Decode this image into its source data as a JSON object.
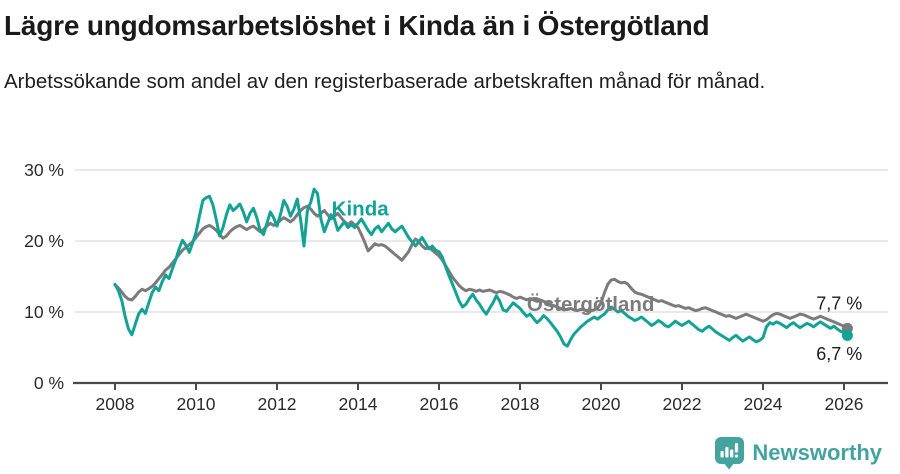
{
  "header": {
    "title": "Lägre ungdomsarbetslöshet i Kinda än i Östergötland",
    "subtitle": "Arbetssökande som andel av den registerbaserade arbetskraften månad för månad."
  },
  "chart_data": {
    "type": "line",
    "title": "Lägre ungdomsarbetslöshet i Kinda än i Östergötland",
    "subtitle": "Arbetssökande som andel av den registerbaserade arbetskraften månad för månad.",
    "x_start": {
      "year": 2008,
      "month": 1
    },
    "frequency": "monthly",
    "x_ticks": [
      "2008",
      "2010",
      "2012",
      "2014",
      "2016",
      "2018",
      "2020",
      "2022",
      "2024",
      "2026"
    ],
    "y_ticks": [
      {
        "value": 0,
        "label": "0 %"
      },
      {
        "value": 10,
        "label": "10 %"
      },
      {
        "value": 20,
        "label": "20 %"
      },
      {
        "value": 30,
        "label": "30 %"
      }
    ],
    "ylim": [
      0,
      30
    ],
    "grid": true,
    "legend_position": "inline-labels",
    "colors": {
      "kinda": "#12a296",
      "ostergotland": "#7b7b7b",
      "grid": "#e2e2e2",
      "axis": "#4a4a4a",
      "tick_text": "#2b2b2b",
      "value_text": "#1c1c1c"
    },
    "series": [
      {
        "name": "Östergötland",
        "color": "#7b7b7b",
        "end_label": "7,7 %",
        "label_pos": {
          "year": 2018.17,
          "value": 10.15
        },
        "end_label_pos": {
          "year": 2026.45,
          "value": 10.35
        },
        "values": [
          13.8,
          13.4,
          12.8,
          12.2,
          11.8,
          11.7,
          12.2,
          12.8,
          13.2,
          13.0,
          13.3,
          13.6,
          14.1,
          14.7,
          15.3,
          15.9,
          16.3,
          16.9,
          17.5,
          18.1,
          18.7,
          19.1,
          19.5,
          19.9,
          20.5,
          21.1,
          21.7,
          22.0,
          22.2,
          21.9,
          21.5,
          20.9,
          20.4,
          20.7,
          21.3,
          21.7,
          22.0,
          22.2,
          21.9,
          21.6,
          21.9,
          22.1,
          21.7,
          21.3,
          21.6,
          22.1,
          22.5,
          22.2,
          22.5,
          22.9,
          23.3,
          23.0,
          22.7,
          23.1,
          23.7,
          24.3,
          24.7,
          24.9,
          24.5,
          23.9,
          23.5,
          23.9,
          24.3,
          23.7,
          23.1,
          23.5,
          23.9,
          23.3,
          22.7,
          22.3,
          22.7,
          22.3,
          21.9,
          20.9,
          19.8,
          18.6,
          19.1,
          19.6,
          19.4,
          19.5,
          19.3,
          18.9,
          18.5,
          18.1,
          17.7,
          17.3,
          17.9,
          18.5,
          19.5,
          20.3,
          19.9,
          19.3,
          18.9,
          19.1,
          18.7,
          18.3,
          17.9,
          17.3,
          16.5,
          15.7,
          14.9,
          14.3,
          13.7,
          13.3,
          13.0,
          13.2,
          13.1,
          12.9,
          13.1,
          12.9,
          13.0,
          13.1,
          12.9,
          12.7,
          12.9,
          12.8,
          12.6,
          12.4,
          12.1,
          11.9,
          12.1,
          11.9,
          11.7,
          11.9,
          11.7,
          11.5,
          11.7,
          11.5,
          11.3,
          11.1,
          10.9,
          10.7,
          10.5,
          10.3,
          10.4,
          10.5,
          10.3,
          10.2,
          10.4,
          10.3,
          10.1,
          10.2,
          10.3,
          10.5,
          11.3,
          12.7,
          13.9,
          14.5,
          14.6,
          14.3,
          14.1,
          14.2,
          13.9,
          13.3,
          12.8,
          12.6,
          12.5,
          12.3,
          12.1,
          11.9,
          11.7,
          11.5,
          11.6,
          11.4,
          11.2,
          11.0,
          10.8,
          10.9,
          10.7,
          10.5,
          10.6,
          10.4,
          10.2,
          10.3,
          10.5,
          10.6,
          10.4,
          10.2,
          10.0,
          9.8,
          9.6,
          9.4,
          9.5,
          9.3,
          9.1,
          9.3,
          9.5,
          9.7,
          9.5,
          9.3,
          9.1,
          8.9,
          8.7,
          8.9,
          9.3,
          9.6,
          9.8,
          9.7,
          9.5,
          9.3,
          9.1,
          9.3,
          9.5,
          9.7,
          9.6,
          9.4,
          9.2,
          9.0,
          9.2,
          9.4,
          9.2,
          9.0,
          8.8,
          8.6,
          8.4,
          8.2,
          8.0,
          7.7
        ]
      },
      {
        "name": "Kinda",
        "color": "#12a296",
        "end_label": "6,7 %",
        "label_pos": {
          "year": 2013.35,
          "value": 23.6
        },
        "end_label_pos": {
          "year": 2026.45,
          "value": 3.25
        },
        "values": [
          13.9,
          13.0,
          11.6,
          9.4,
          7.6,
          6.8,
          8.3,
          9.7,
          10.4,
          9.8,
          11.3,
          12.7,
          13.5,
          13.0,
          14.3,
          15.2,
          14.7,
          16.1,
          17.4,
          18.9,
          20.1,
          19.4,
          18.4,
          19.7,
          21.2,
          23.5,
          25.7,
          26.1,
          26.3,
          25.1,
          23.0,
          20.7,
          21.9,
          23.7,
          25.1,
          24.3,
          24.7,
          25.2,
          24.1,
          22.7,
          23.9,
          24.6,
          23.3,
          21.5,
          20.9,
          22.5,
          24.1,
          23.3,
          22.1,
          23.7,
          25.7,
          24.9,
          23.5,
          24.5,
          25.9,
          23.0,
          19.3,
          24.3,
          25.5,
          27.3,
          26.7,
          23.1,
          21.3,
          22.5,
          23.7,
          23.1,
          21.5,
          22.1,
          22.7,
          21.9,
          22.3,
          21.9,
          22.5,
          23.1,
          22.3,
          21.5,
          20.9,
          21.7,
          22.1,
          21.3,
          21.9,
          22.5,
          21.7,
          21.3,
          21.7,
          22.1,
          21.3,
          20.5,
          19.9,
          19.3,
          19.9,
          20.5,
          19.7,
          18.9,
          19.3,
          18.7,
          18.5,
          17.7,
          16.3,
          15.1,
          13.9,
          12.7,
          11.5,
          10.7,
          11.1,
          11.9,
          12.5,
          11.7,
          11.1,
          10.3,
          9.7,
          10.5,
          11.3,
          12.3,
          11.5,
          10.3,
          10.1,
          10.7,
          11.3,
          10.9,
          10.5,
          9.9,
          9.4,
          9.7,
          9.1,
          8.5,
          8.9,
          9.5,
          9.1,
          8.5,
          7.9,
          7.3,
          6.5,
          5.5,
          5.2,
          6.1,
          6.9,
          7.4,
          7.9,
          8.3,
          8.7,
          9.0,
          9.3,
          9.0,
          9.4,
          9.7,
          10.3,
          10.7,
          10.4,
          10.0,
          10.2,
          9.8,
          9.4,
          9.1,
          8.8,
          9.0,
          9.3,
          8.9,
          8.5,
          8.1,
          8.4,
          8.8,
          8.5,
          8.1,
          7.9,
          8.3,
          8.7,
          8.4,
          8.1,
          8.4,
          8.7,
          8.3,
          7.9,
          7.5,
          7.3,
          7.7,
          8.0,
          7.6,
          7.2,
          6.9,
          6.6,
          6.3,
          6.0,
          6.4,
          6.7,
          6.3,
          5.9,
          6.2,
          6.5,
          6.1,
          5.8,
          6.0,
          6.4,
          7.9,
          8.5,
          8.3,
          8.6,
          8.4,
          8.1,
          7.8,
          8.2,
          8.5,
          8.1,
          7.8,
          8.1,
          8.4,
          8.2,
          7.9,
          8.3,
          8.6,
          8.3,
          8.0,
          7.7,
          8.0,
          7.6,
          7.3,
          7.1,
          6.7
        ]
      }
    ]
  },
  "footer": {
    "brand_name": "Newsworthy",
    "brand_color": "#43a49f"
  }
}
